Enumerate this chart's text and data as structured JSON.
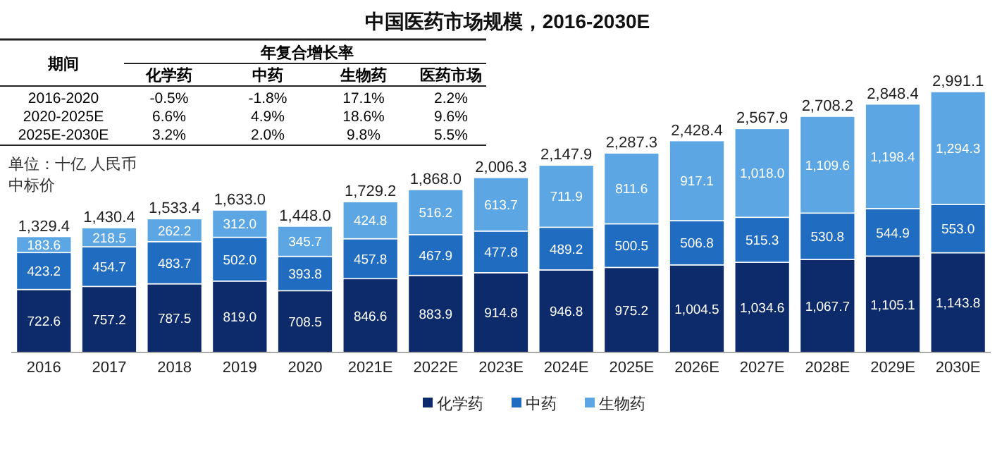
{
  "chart_data": [
    {
      "type": "bar",
      "title": "中国医药市场规模，2016-2030E",
      "stacked": true,
      "legend": "bottom",
      "annotations": [
        "单位：十亿 人民币",
        "中标价"
      ],
      "categories": [
        "2016",
        "2017",
        "2018",
        "2019",
        "2020",
        "2021E",
        "2022E",
        "2023E",
        "2024E",
        "2025E",
        "2026E",
        "2027E",
        "2028E",
        "2029E",
        "2030E"
      ],
      "series": [
        {
          "name": "化学药",
          "color": "#0d2a6b",
          "values": [
            722.6,
            757.2,
            787.5,
            819.0,
            708.5,
            846.6,
            883.9,
            914.8,
            946.8,
            975.2,
            1004.5,
            1034.6,
            1067.7,
            1105.1,
            1143.8
          ],
          "value_labels": [
            "722.6",
            "757.2",
            "787.5",
            "819.0",
            "708.5",
            "846.6",
            "883.9",
            "914.8",
            "946.8",
            "975.2",
            "1,004.5",
            "1,034.6",
            "1,067.7",
            "1,105.1",
            "1,143.8"
          ]
        },
        {
          "name": "中药",
          "color": "#1f6cc0",
          "values": [
            423.2,
            454.7,
            483.7,
            502.0,
            393.8,
            457.8,
            467.9,
            477.8,
            489.2,
            500.5,
            506.8,
            515.3,
            530.8,
            544.9,
            553.0
          ],
          "value_labels": [
            "423.2",
            "454.7",
            "483.7",
            "502.0",
            "393.8",
            "457.8",
            "467.9",
            "477.8",
            "489.2",
            "500.5",
            "506.8",
            "515.3",
            "530.8",
            "544.9",
            "553.0"
          ]
        },
        {
          "name": "生物药",
          "color": "#5ca7e3",
          "values": [
            183.6,
            218.5,
            262.2,
            312.0,
            345.7,
            424.8,
            516.2,
            613.7,
            711.9,
            811.6,
            917.1,
            1018.0,
            1109.6,
            1198.4,
            1294.3
          ],
          "value_labels": [
            "183.6",
            "218.5",
            "262.2",
            "312.0",
            "345.7",
            "424.8",
            "516.2",
            "613.7",
            "711.9",
            "811.6",
            "917.1",
            "1,018.0",
            "1,109.6",
            "1,198.4",
            "1,294.3"
          ]
        }
      ],
      "totals": [
        "1,329.4",
        "1,430.4",
        "1,533.4",
        "1,633.0",
        "1,448.0",
        "1,729.2",
        "1,868.0",
        "2,006.3",
        "2,147.9",
        "2,287.3",
        "2,428.4",
        "2,567.9",
        "2,708.2",
        "2,848.4",
        "2,991.1"
      ]
    },
    {
      "type": "other",
      "title": "年复合增长率",
      "annotations": [
        "期间"
      ],
      "categories": [
        "化学药",
        "中药",
        "生物药",
        "医药市场"
      ],
      "y_categories": [
        "2016-2020",
        "2020-2025E",
        "2025E-2030E"
      ],
      "cell_labels": [
        [
          "-0.5%",
          "-1.8%",
          "17.1%",
          "2.2%"
        ],
        [
          "6.6%",
          "4.9%",
          "18.6%",
          "9.6%"
        ],
        [
          "3.2%",
          "2.0%",
          "9.8%",
          "5.5%"
        ]
      ]
    }
  ]
}
